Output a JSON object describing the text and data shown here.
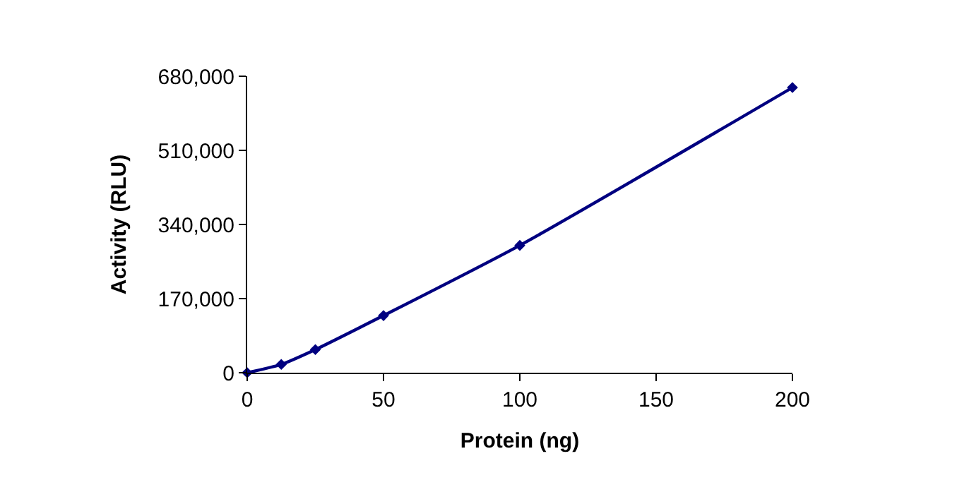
{
  "chart_data": {
    "type": "line",
    "xlabel": "Protein (ng)",
    "ylabel": "Activity (RLU)",
    "x": [
      0,
      12.5,
      25,
      50,
      100,
      200
    ],
    "series": [
      {
        "color": "#000080",
        "values": [
          0,
          19000,
          53000,
          131000,
          292000,
          654000
        ]
      }
    ],
    "xlim": [
      0,
      200
    ],
    "xticks": [
      0,
      50,
      100,
      150,
      200
    ],
    "ylim": [
      0,
      680000
    ],
    "yticks": [
      {
        "value": 0,
        "label": "0"
      },
      {
        "value": 170000,
        "label": "170,000"
      },
      {
        "value": 340000,
        "label": "340,000"
      },
      {
        "value": 510000,
        "label": "510,000"
      },
      {
        "value": 680000,
        "label": "680,000"
      }
    ],
    "marker": "diamond",
    "line_style": "solid"
  }
}
